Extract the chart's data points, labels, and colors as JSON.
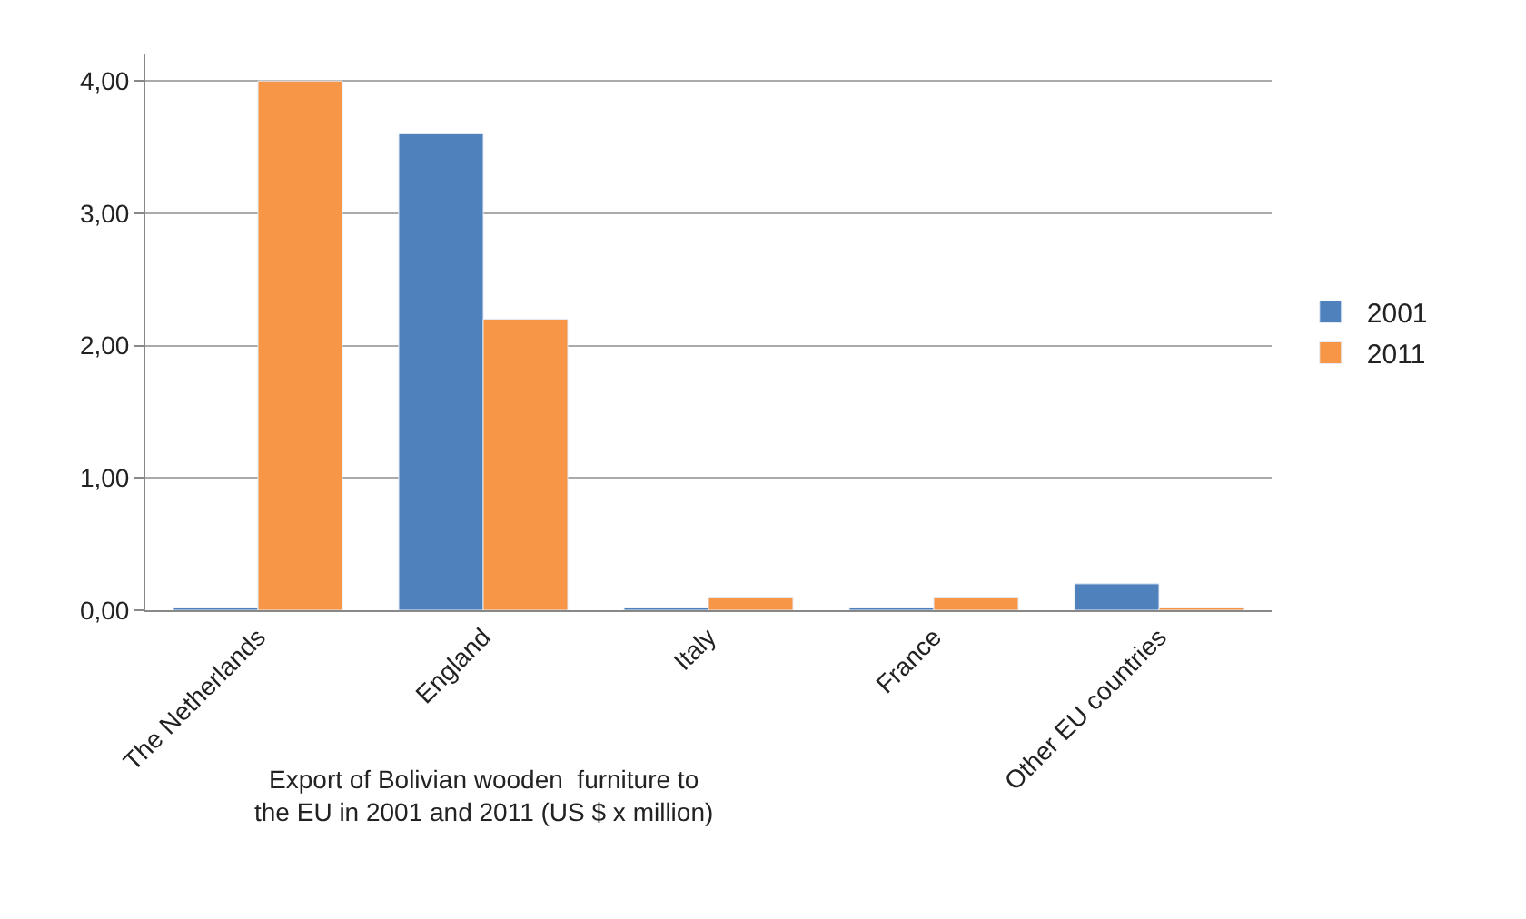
{
  "chart_data": {
    "type": "bar",
    "categories": [
      "The Netherlands",
      "England",
      "Italy",
      "France",
      "Other EU countries"
    ],
    "series": [
      {
        "name": "2001",
        "color": "#4f81bd",
        "values": [
          0.02,
          3.6,
          0.02,
          0.02,
          0.2
        ]
      },
      {
        "name": "2011",
        "color": "#f79646",
        "values": [
          4.0,
          2.2,
          0.1,
          0.1,
          0.02
        ]
      }
    ],
    "ylim": [
      0,
      4.2
    ],
    "yticks": [
      {
        "value": 0,
        "label": "0,00"
      },
      {
        "value": 1,
        "label": "1,00"
      },
      {
        "value": 2,
        "label": "2,00"
      },
      {
        "value": 3,
        "label": "3,00"
      },
      {
        "value": 4,
        "label": "4,00"
      }
    ],
    "grid": "y",
    "legend": "right",
    "annotations": [
      "Export of Bolivian wooden  furniture to\nthe EU in 2001 and 2011 (US $ x million)"
    ]
  }
}
